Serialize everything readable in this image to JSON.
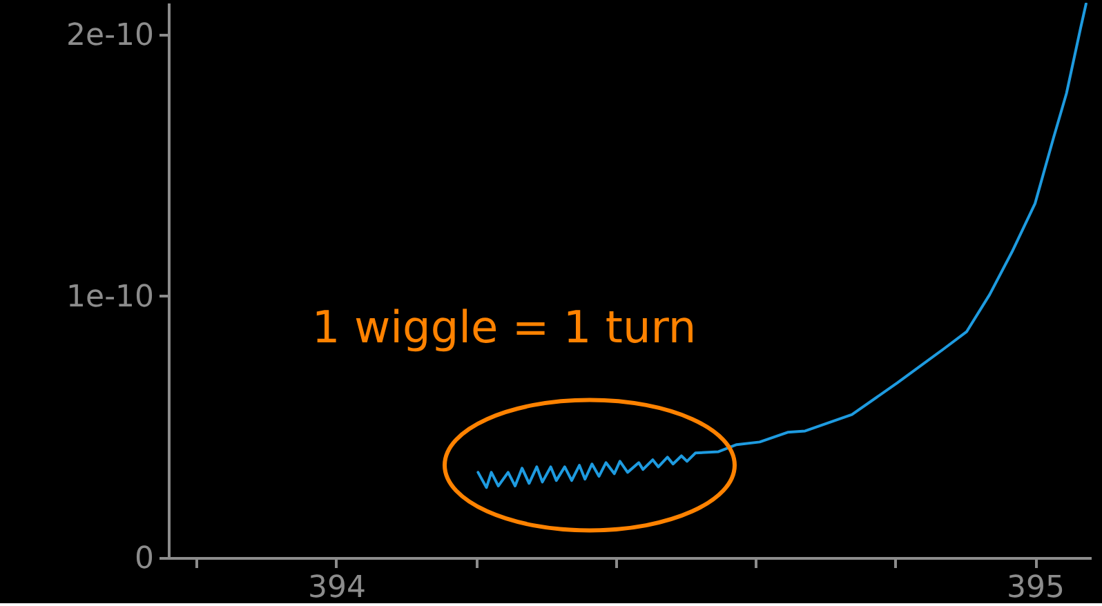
{
  "chart_data": {
    "type": "line",
    "x": [
      394.203,
      394.215,
      394.222,
      394.232,
      394.246,
      394.256,
      394.266,
      394.276,
      394.287,
      394.295,
      394.307,
      394.315,
      394.327,
      394.337,
      394.348,
      394.356,
      394.366,
      394.376,
      394.386,
      394.398,
      394.406,
      394.417,
      394.433,
      394.439,
      394.453,
      394.461,
      394.474,
      394.482,
      394.494,
      394.502,
      394.514,
      394.547,
      394.573,
      394.606,
      394.646,
      394.671,
      394.738,
      394.803,
      394.868,
      394.902,
      394.935,
      394.967,
      395.0,
      395.026,
      395.045,
      395.065,
      395.073
    ],
    "series": [
      {
        "color": "#1e9be0",
        "values": [
          3.26e-11,
          2.68e-11,
          3.26e-11,
          2.74e-11,
          3.26e-11,
          2.74e-11,
          3.42e-11,
          2.84e-11,
          3.47e-11,
          2.89e-11,
          3.47e-11,
          2.95e-11,
          3.47e-11,
          2.95e-11,
          3.53e-11,
          3e-11,
          3.58e-11,
          3.11e-11,
          3.63e-11,
          3.21e-11,
          3.68e-11,
          3.26e-11,
          3.63e-11,
          3.37e-11,
          3.74e-11,
          3.47e-11,
          3.84e-11,
          3.58e-11,
          3.89e-11,
          3.68e-11,
          4e-11,
          4.05e-11,
          4.32e-11,
          4.42e-11,
          4.79e-11,
          4.84e-11,
          5.47e-11,
          6.68e-11,
          7.95e-11,
          8.63e-11,
          1.005e-10,
          1.168e-10,
          1.353e-10,
          1.6e-10,
          1.774e-10,
          2.021e-10,
          2.116e-10
        ]
      }
    ],
    "xlim": [
      393.76,
      395.08
    ],
    "xticks": [
      {
        "value": 393.8,
        "label": null
      },
      394,
      {
        "value": 394.2,
        "label": null
      },
      {
        "value": 394.4,
        "label": null
      },
      {
        "value": 394.6,
        "label": null
      },
      {
        "value": 394.8,
        "label": null
      },
      395
    ],
    "ylim": [
      0,
      2.12e-10
    ],
    "yticks": [
      0,
      {
        "value": 1e-10,
        "label": "1e-10"
      },
      {
        "value": 2e-10,
        "label": "2e-10"
      }
    ],
    "grid": false,
    "marker": "none",
    "line_style": "solid",
    "annotations": [
      "1 wiggle = 1 turn"
    ]
  }
}
